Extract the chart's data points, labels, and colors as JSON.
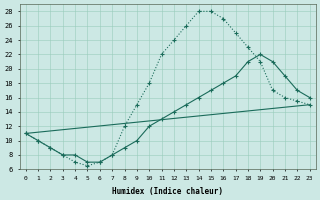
{
  "xlabel": "Humidex (Indice chaleur)",
  "bg_color": "#cce8e4",
  "line_color": "#1a6b5a",
  "xlim_min": -0.5,
  "xlim_max": 23.5,
  "ylim_min": 6,
  "ylim_max": 29,
  "xticks": [
    0,
    1,
    2,
    3,
    4,
    5,
    6,
    7,
    8,
    9,
    10,
    11,
    12,
    13,
    14,
    15,
    16,
    17,
    18,
    19,
    20,
    21,
    22,
    23
  ],
  "yticks": [
    6,
    8,
    10,
    12,
    14,
    16,
    18,
    20,
    22,
    24,
    26,
    28
  ],
  "curve1_x": [
    0,
    1,
    2,
    3,
    4,
    5,
    6,
    7,
    8,
    9,
    10,
    11,
    12,
    13,
    14,
    15,
    16,
    17,
    18,
    19,
    20,
    21,
    22,
    23
  ],
  "curve1_y": [
    11,
    10,
    9,
    8,
    7,
    6.5,
    7,
    8,
    12,
    15,
    18,
    22,
    24,
    26,
    28,
    28,
    27,
    25,
    23,
    21,
    17,
    16,
    15.5,
    15
  ],
  "curve2_x": [
    0,
    1,
    2,
    3,
    4,
    5,
    6,
    7,
    8,
    9,
    10,
    11,
    12,
    13,
    14,
    15,
    16,
    17,
    18,
    19,
    20,
    21,
    22,
    23
  ],
  "curve2_y": [
    11,
    10,
    9,
    8,
    8,
    7,
    7,
    8,
    9,
    10,
    12,
    13,
    14,
    15,
    16,
    17,
    18,
    19,
    21,
    22,
    21,
    19,
    17,
    16
  ],
  "curve3_x": [
    0,
    23
  ],
  "curve3_y": [
    11,
    15
  ]
}
